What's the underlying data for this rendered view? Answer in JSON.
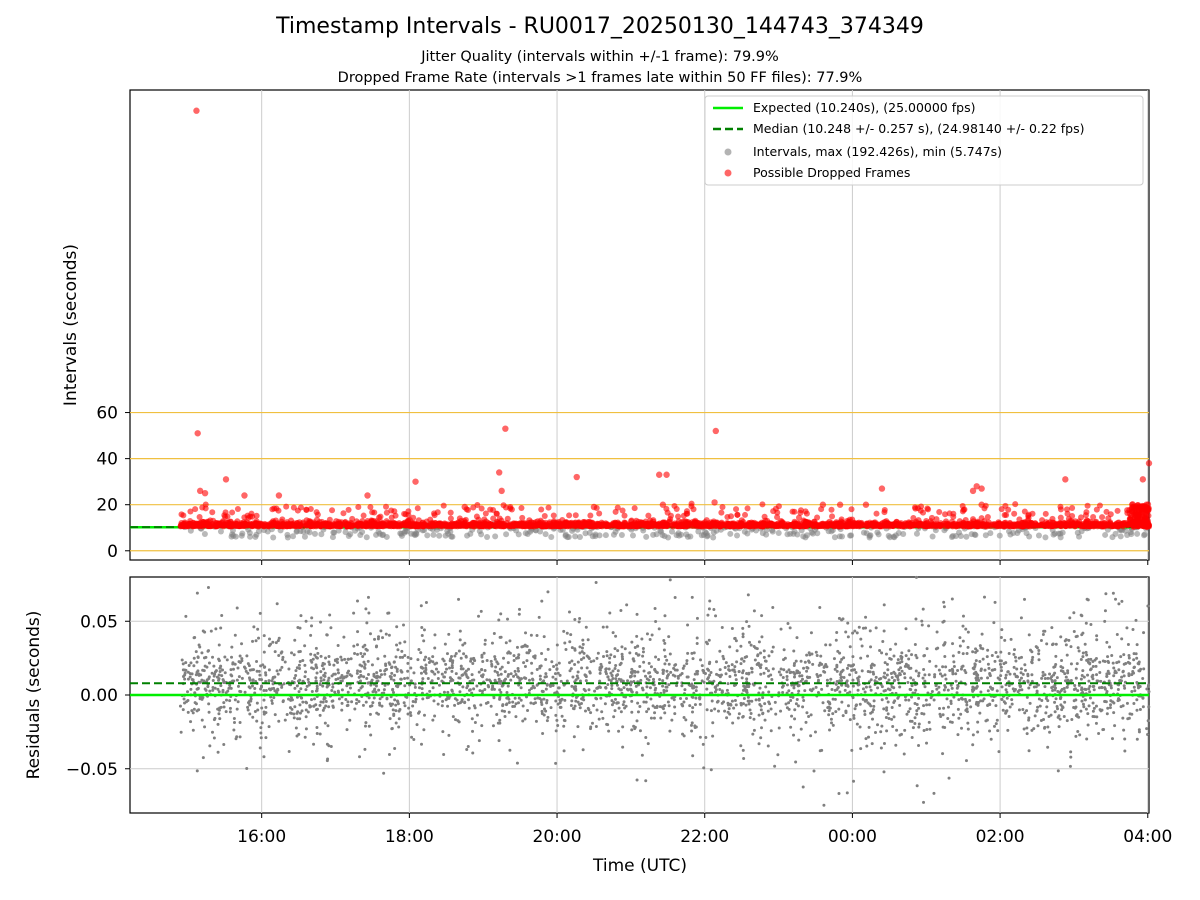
{
  "title": "Timestamp Intervals - RU0017_20250130_144743_374349",
  "subtitle_jitter": "Jitter Quality (intervals within +/-1 frame): 79.9%",
  "subtitle_dropped": "Dropped Frame Rate (intervals >1 frames late within 50 FF files): 77.9%",
  "colors": {
    "expected": "#00ee00",
    "median": "#008000",
    "intervals": "#808080",
    "dropped": "#ff0000",
    "threshold": "#f0c040",
    "grid": "#cccccc"
  },
  "chart_data": [
    {
      "type": "scatter",
      "ylabel": "Intervals (seconds)",
      "xlim": [
        "14:13",
        "04:01"
      ],
      "ylim": [
        -4,
        200
      ],
      "yticks": [
        0,
        20,
        40,
        60
      ],
      "ytick_labels": [
        "0",
        "20",
        "40",
        "60"
      ],
      "grid": "x-only",
      "threshold_lines": [
        0,
        20,
        40,
        60
      ],
      "legend_position": "upper-right",
      "expected": {
        "label": "Expected (10.240s), (25.00000 fps)",
        "value": 10.24
      },
      "median": {
        "label": "Median (10.248 +/- 0.257 s), (24.98140 +/- 0.22 fps)",
        "value": 10.248
      },
      "intervals_series": {
        "label": "Intervals, max (192.426s), min (5.747s)",
        "max": 192.426,
        "min": 5.747,
        "x_range": [
          "14:54",
          "04:01"
        ]
      },
      "dropped_series": {
        "label": "Possible Dropped Frames",
        "highlights": [
          {
            "x": "15:07",
            "y": 191
          },
          {
            "x": "15:08",
            "y": 51
          },
          {
            "x": "19:18",
            "y": 53
          },
          {
            "x": "22:09",
            "y": 52
          },
          {
            "x": "19:13",
            "y": 34
          },
          {
            "x": "21:23",
            "y": 33
          },
          {
            "x": "21:29",
            "y": 33
          },
          {
            "x": "20:16",
            "y": 32
          },
          {
            "x": "15:31",
            "y": 31
          },
          {
            "x": "18:05",
            "y": 30
          },
          {
            "x": "02:53",
            "y": 31
          },
          {
            "x": "03:56",
            "y": 31
          },
          {
            "x": "04:01",
            "y": 38
          },
          {
            "x": "01:38",
            "y": 26
          },
          {
            "x": "01:41",
            "y": 28
          },
          {
            "x": "01:45",
            "y": 27
          },
          {
            "x": "00:24",
            "y": 27
          },
          {
            "x": "19:15",
            "y": 26
          },
          {
            "x": "15:10",
            "y": 26
          },
          {
            "x": "15:14",
            "y": 25
          },
          {
            "x": "17:26",
            "y": 24
          },
          {
            "x": "16:14",
            "y": 24
          },
          {
            "x": "15:46",
            "y": 24
          },
          {
            "x": "22:08",
            "y": 21
          },
          {
            "x": "23:36",
            "y": 20
          },
          {
            "x": "21:26",
            "y": 20
          },
          {
            "x": "00:11",
            "y": 20
          },
          {
            "x": "18:45",
            "y": 19
          },
          {
            "x": "20:30",
            "y": 19
          },
          {
            "x": "23:50",
            "y": 20
          },
          {
            "x": "01:45",
            "y": 20
          }
        ]
      }
    },
    {
      "type": "scatter",
      "ylabel": "Residuals (seconds)",
      "xlabel": "Time (UTC)",
      "xlim": [
        "14:13",
        "04:01"
      ],
      "ylim": [
        -0.08,
        0.08
      ],
      "yticks": [
        -0.05,
        0.0,
        0.05
      ],
      "ytick_labels": [
        "−0.05",
        "0.00",
        "0.05"
      ],
      "xticks": [
        "16:00",
        "18:00",
        "20:00",
        "22:00",
        "00:00",
        "02:00",
        "04:00"
      ],
      "grid": "both",
      "expected_residual": 0.0,
      "median_residual": 0.008,
      "residual_spread_sd": 0.025
    }
  ]
}
